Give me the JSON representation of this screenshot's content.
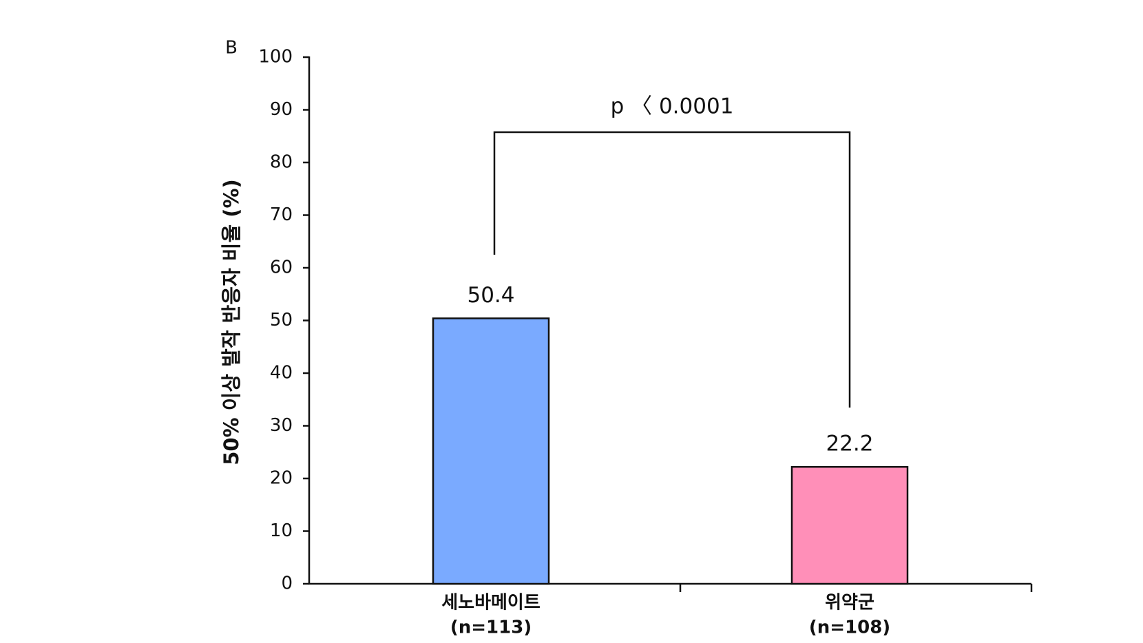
{
  "chart_data": {
    "type": "bar",
    "panel_label": "B",
    "y_label": "50% 이상 발작 반응자 비율 (%)",
    "categories": [
      [
        "세노바메이트",
        "(n=113)"
      ],
      [
        "위약군",
        "(n=108)"
      ]
    ],
    "values": [
      50.4,
      22.2
    ],
    "colors": [
      "#7aaaff",
      "#ff8fb8"
    ],
    "annotation": "p 〈 0.0001",
    "ylim": [
      0,
      100
    ],
    "yticks": [
      0,
      10,
      20,
      30,
      40,
      50,
      60,
      70,
      80,
      90,
      100
    ]
  }
}
